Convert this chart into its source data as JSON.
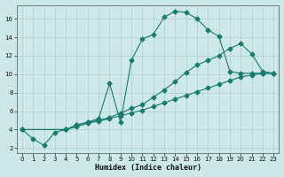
{
  "xlabel": "Humidex (Indice chaleur)",
  "bg_color": "#cce8e8",
  "line_color": "#1a7a6e",
  "xlim": [
    -0.5,
    23.5
  ],
  "ylim": [
    1.5,
    17.5
  ],
  "xticks": [
    0,
    1,
    2,
    3,
    4,
    5,
    6,
    7,
    8,
    9,
    10,
    11,
    12,
    13,
    14,
    15,
    16,
    17,
    18,
    19,
    20,
    21,
    22,
    23
  ],
  "yticks": [
    2,
    4,
    6,
    8,
    10,
    12,
    14,
    16
  ],
  "line1_x": [
    0,
    1,
    2,
    3,
    4,
    5,
    6,
    7,
    8,
    9,
    10,
    11,
    12,
    13,
    14,
    15,
    16,
    17,
    18,
    19,
    20,
    21,
    22,
    23
  ],
  "line1_y": [
    4.0,
    3.0,
    2.3,
    3.7,
    4.0,
    4.5,
    4.8,
    5.2,
    9.0,
    4.8,
    11.5,
    13.8,
    14.3,
    16.2,
    16.8,
    16.7,
    16.0,
    14.8,
    14.1,
    10.3,
    10.1,
    10.1,
    10.1,
    10.1
  ],
  "line2_x": [
    0,
    4,
    5,
    6,
    7,
    8,
    9,
    10,
    11,
    12,
    13,
    14,
    15,
    16,
    17,
    18,
    19,
    20,
    21,
    22,
    23
  ],
  "line2_y": [
    4.0,
    4.0,
    4.5,
    4.8,
    5.0,
    5.3,
    5.8,
    6.3,
    6.7,
    7.5,
    8.3,
    9.2,
    10.2,
    11.0,
    11.5,
    12.0,
    12.8,
    13.3,
    12.2,
    10.3,
    10.1
  ],
  "line3_x": [
    0,
    4,
    5,
    6,
    7,
    8,
    9,
    10,
    11,
    12,
    13,
    14,
    15,
    16,
    17,
    18,
    19,
    20,
    21,
    22,
    23
  ],
  "line3_y": [
    4.0,
    4.0,
    4.3,
    4.7,
    4.9,
    5.2,
    5.5,
    5.8,
    6.1,
    6.5,
    6.9,
    7.3,
    7.7,
    8.1,
    8.5,
    8.9,
    9.3,
    9.7,
    9.9,
    10.1,
    10.1
  ]
}
